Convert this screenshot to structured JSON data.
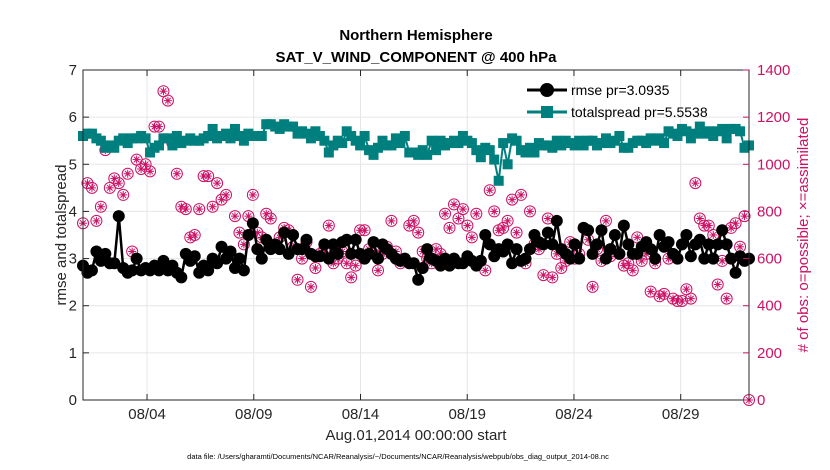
{
  "chart_data": {
    "type": "line",
    "title": "Northern Hemisphere",
    "subtitle": "SAT_V_WIND_COMPONENT @ 400 hPa",
    "xlabel": "Aug.01,2014 00:00:00 start",
    "ylabel_left": "rmse and totalspread",
    "ylabel_right": "# of obs: o=possible; ×=assimilated",
    "xlim": [
      1.0,
      32.2
    ],
    "ylim_left": [
      0,
      7
    ],
    "ylim_right": [
      0,
      1400
    ],
    "x_ticks": [
      {
        "value": 4,
        "label": "08/04"
      },
      {
        "value": 9,
        "label": "08/09"
      },
      {
        "value": 14,
        "label": "08/14"
      },
      {
        "value": 19,
        "label": "08/19"
      },
      {
        "value": 24,
        "label": "08/24"
      },
      {
        "value": 29,
        "label": "08/29"
      }
    ],
    "y_ticks_left": [
      "0",
      "1",
      "2",
      "3",
      "4",
      "5",
      "6",
      "7"
    ],
    "y_ticks_right": [
      "0",
      "200",
      "400",
      "600",
      "800",
      "1000",
      "1200",
      "1400"
    ],
    "grid": true,
    "legend": {
      "position": "top-right",
      "entries": [
        "rmse pr=3.0935",
        "totalspread pr=5.5538"
      ]
    },
    "colors": {
      "rmse": "#000000",
      "totalspread": "#007f7f",
      "obs": "#cc1166",
      "grid": "#e6e6e6"
    },
    "series_rmse": [
      2.85,
      2.7,
      2.75,
      3.15,
      2.95,
      3.1,
      2.9,
      2.9,
      3.9,
      2.8,
      2.7,
      2.75,
      3.0,
      2.75,
      2.8,
      2.75,
      2.85,
      2.75,
      2.95,
      2.75,
      2.85,
      2.7,
      2.6,
      3.1,
      2.95,
      3.05,
      2.7,
      2.85,
      2.75,
      3.0,
      2.9,
      3.25,
      3.0,
      3.15,
      2.8,
      3.0,
      2.75,
      3.5,
      3.75,
      3.2,
      3.0,
      3.4,
      3.2,
      3.3,
      3.2,
      3.55,
      3.1,
      3.5,
      3.2,
      3.2,
      3.4,
      3.1,
      3.05,
      3.05,
      3.3,
      3.0,
      3.3,
      3.1,
      3.35,
      3.4,
      3.1,
      3.4,
      3.1,
      3.0,
      3.1,
      3.35,
      3.0,
      3.3,
      3.2,
      3.1,
      3.0,
      2.95,
      3.0,
      2.9,
      2.9,
      2.55,
      2.8,
      3.2,
      3.0,
      2.95,
      2.85,
      3.0,
      2.85,
      3.0,
      2.9,
      2.9,
      3.05,
      2.95,
      2.85,
      2.95,
      3.5,
      3.3,
      3.05,
      3.2,
      3.15,
      3.3,
      2.9,
      3.2,
      2.95,
      3.0,
      3.2,
      3.5,
      3.35,
      3.3,
      3.55,
      3.3,
      3.8,
      3.2,
      3.1,
      3.0,
      3.3,
      3.0,
      3.65,
      3.6,
      3.1,
      3.3,
      3.6,
      3.0,
      3.2,
      3.5,
      3.1,
      3.7,
      3.3,
      3.1,
      3.1,
      3.25,
      3.35,
      3.2,
      3.0,
      3.5,
      3.25,
      3.35,
      3.1,
      3.0,
      3.3,
      3.5,
      3.05,
      3.3,
      3.4,
      3.0,
      3.3,
      3.0,
      3.3,
      3.6,
      3.3,
      3.0,
      2.7,
      3.05,
      2.95,
      3.0
    ],
    "series_spread": [
      5.6,
      5.65,
      5.65,
      5.55,
      5.5,
      5.35,
      5.4,
      5.35,
      5.5,
      5.55,
      5.45,
      5.55,
      5.55,
      5.6,
      5.55,
      5.25,
      5.35,
      5.4,
      5.55,
      5.55,
      5.4,
      5.6,
      5.45,
      5.5,
      5.55,
      5.5,
      5.5,
      5.55,
      5.6,
      5.75,
      5.55,
      5.6,
      5.65,
      5.55,
      5.75,
      5.6,
      5.5,
      5.65,
      5.6,
      5.6,
      5.6,
      5.85,
      5.85,
      5.8,
      5.75,
      5.85,
      5.8,
      5.8,
      5.65,
      5.7,
      5.65,
      5.55,
      5.7,
      5.6,
      5.5,
      5.25,
      5.4,
      5.5,
      5.45,
      5.7,
      5.6,
      5.5,
      5.4,
      5.6,
      5.3,
      5.2,
      5.35,
      5.5,
      5.4,
      5.4,
      5.55,
      5.45,
      5.6,
      5.25,
      5.25,
      5.2,
      5.3,
      5.2,
      5.5,
      5.3,
      5.5,
      5.4,
      5.45,
      5.5,
      5.45,
      5.6,
      5.5,
      5.45,
      5.3,
      5.15,
      5.35,
      5.3,
      5.1,
      4.65,
      5.45,
      5.0,
      5.55,
      5.5,
      5.3,
      5.25,
      5.35,
      5.25,
      5.45,
      5.4,
      5.4,
      5.35,
      5.5,
      5.4,
      5.5,
      5.45,
      5.4,
      5.5,
      5.4,
      5.5,
      5.5,
      5.4,
      5.45,
      5.55,
      5.45,
      5.5,
      5.6,
      5.35,
      5.35,
      5.45,
      5.5,
      5.5,
      5.45,
      5.55,
      5.5,
      5.55,
      5.45,
      5.7,
      5.65,
      5.6,
      5.75,
      5.7,
      5.55,
      5.65,
      5.8,
      5.65,
      5.7,
      5.6,
      5.7,
      5.75,
      5.55,
      5.75,
      5.75,
      5.7,
      5.35,
      5.4
    ],
    "series_obs_possible": [
      750,
      920,
      900,
      760,
      820,
      1060,
      900,
      940,
      920,
      870,
      960,
      630,
      1020,
      980,
      1000,
      970,
      1160,
      1160,
      1310,
      1270,
      1090,
      960,
      820,
      810,
      690,
      700,
      810,
      950,
      950,
      820,
      920,
      850,
      870,
      620,
      780,
      710,
      660,
      780,
      870,
      710,
      690,
      790,
      770,
      650,
      690,
      730,
      720,
      650,
      510,
      600,
      670,
      480,
      560,
      620,
      640,
      740,
      580,
      600,
      630,
      580,
      520,
      570,
      720,
      720,
      640,
      620,
      550,
      620,
      650,
      760,
      630,
      580,
      590,
      740,
      760,
      710,
      630,
      600,
      580,
      640,
      620,
      790,
      730,
      830,
      770,
      810,
      740,
      690,
      790,
      590,
      550,
      890,
      800,
      720,
      730,
      760,
      850,
      710,
      870,
      580,
      800,
      660,
      640,
      530,
      770,
      520,
      620,
      560,
      590,
      670,
      600,
      620,
      730,
      680,
      480,
      640,
      590,
      760,
      610,
      630,
      620,
      570,
      580,
      550,
      690,
      590,
      620,
      460,
      580,
      440,
      450,
      600,
      430,
      420,
      420,
      470,
      430,
      920,
      770,
      740,
      740,
      700,
      490,
      590,
      430,
      730,
      750,
      650,
      780,
      0
    ]
  }
}
